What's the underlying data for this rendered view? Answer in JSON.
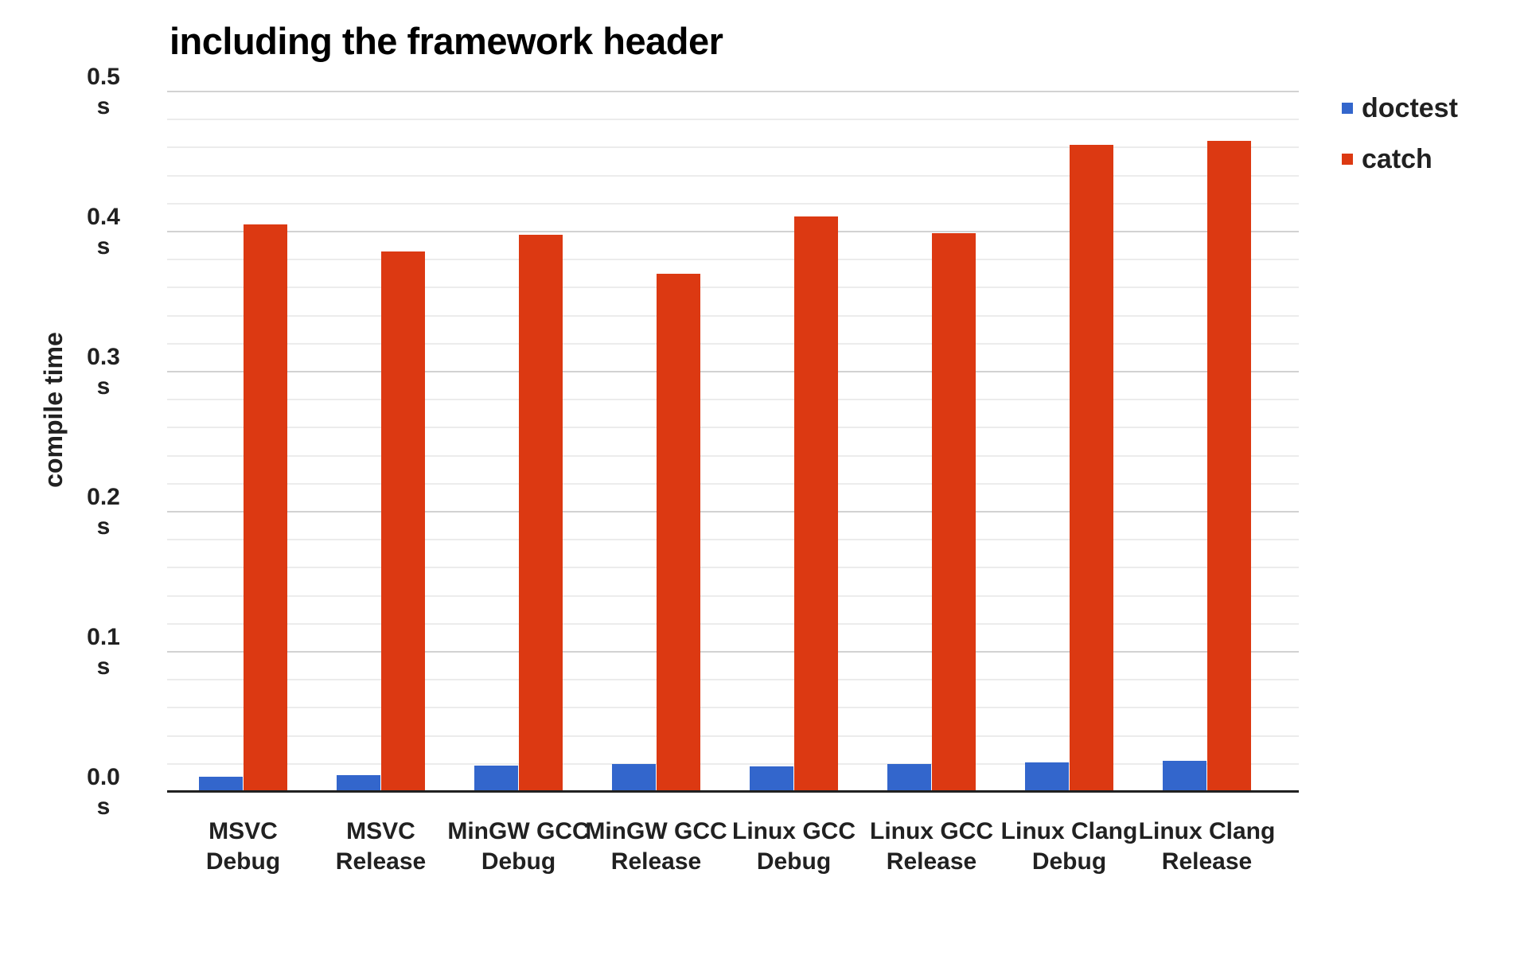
{
  "chart_data": {
    "type": "bar",
    "title": "including the framework header",
    "ylabel": "compile time",
    "unit": "s",
    "categories": [
      "MSVC Debug",
      "MSVC Release",
      "MinGW GCC Debug",
      "MinGW GCC Release",
      "Linux GCC Debug",
      "Linux GCC Release",
      "Linux Clang Debug",
      "Linux Clang Release"
    ],
    "series": [
      {
        "name": "doctest",
        "color": "#3366cc",
        "values": [
          0.011,
          0.012,
          0.019,
          0.02,
          0.018,
          0.02,
          0.021,
          0.022
        ]
      },
      {
        "name": "catch",
        "color": "#dc3912",
        "values": [
          0.405,
          0.386,
          0.398,
          0.37,
          0.411,
          0.399,
          0.462,
          0.465
        ]
      }
    ],
    "ylim": [
      0,
      0.5
    ],
    "ytick_step": 0.1,
    "minor_grid_step": 0.02,
    "ytick_labels": [
      "0.0 s",
      "0.1 s",
      "0.2 s",
      "0.3 s",
      "0.4 s",
      "0.5 s"
    ],
    "grid": true,
    "legend_position": "right",
    "colors": {
      "title_text": "#000000",
      "label_text": "#212121",
      "gridline_major": "#d2d2d2",
      "gridline_minor": "#ececec",
      "axis_line": "#212121",
      "background": "#ffffff"
    }
  }
}
